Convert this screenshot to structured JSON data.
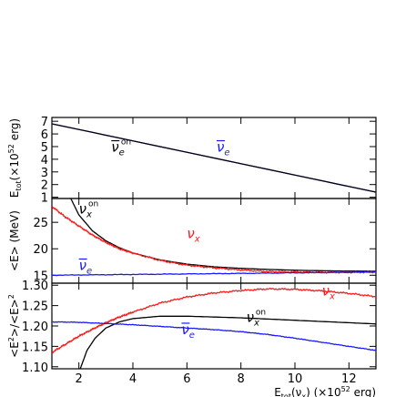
{
  "chart_data": {
    "type": "line",
    "x_axis": {
      "label_main": "E",
      "label_sub": "tot",
      "label_paren": "(ν",
      "label_paren_sub": "x",
      "label_tail": ") (×10",
      "label_exp": "52",
      "label_unit": " erg)",
      "range": [
        1,
        13
      ],
      "ticks": [
        2,
        4,
        6,
        8,
        10,
        12
      ],
      "tick_labels": [
        "2",
        "4",
        "6",
        "8",
        "10",
        "12"
      ]
    },
    "panels": [
      {
        "id": "Etot",
        "ylabel": "E_tot (×10^52 erg)",
        "ylabel_parts": {
          "main": "E",
          "sub": "tot",
          "rest": "(×10",
          "exp": "52",
          "tail": " erg)"
        },
        "ylim": [
          0.9,
          7.3
        ],
        "yticks": [
          1,
          2,
          3,
          4,
          5,
          6,
          7
        ],
        "ytick_labels": [
          "1",
          "2",
          "3",
          "4",
          "5",
          "6",
          "7"
        ],
        "series": [
          {
            "kind": "nue_model",
            "color": "#1a1aff",
            "x": [
              1,
              13
            ],
            "y": [
              6.8,
              1.4
            ]
          },
          {
            "kind": "nue_on",
            "color": "#000000",
            "x": [
              1,
              13
            ],
            "y": [
              6.8,
              1.4
            ]
          }
        ],
        "annotations": [
          {
            "base": "ν",
            "bar": true,
            "sub": "e",
            "sup": "on",
            "color": "#000000",
            "x": 3.2,
            "y": 4.6
          },
          {
            "base": "ν",
            "bar": true,
            "sub": "e",
            "sup": "",
            "color": "#1a1aff",
            "x": 7.1,
            "y": 4.6
          }
        ]
      },
      {
        "id": "meanE",
        "ylabel": "<E> (MeV)",
        "ylim": [
          13.5,
          29.5
        ],
        "yticks": [
          15,
          20,
          25
        ],
        "ytick_labels": [
          "15",
          "20",
          "25"
        ],
        "series": [
          {
            "kind": "nux_on",
            "color": "#000000",
            "x": [
              1.7,
              2,
              2.5,
              3,
              3.5,
              4,
              5,
              6,
              7,
              8,
              9,
              10,
              11,
              12,
              13
            ],
            "y": [
              29.5,
              26.4,
              23.4,
              21.5,
              20.2,
              19.2,
              17.9,
              17.1,
              16.6,
              16.3,
              16.1,
              15.95,
              15.85,
              15.8,
              15.75
            ]
          },
          {
            "kind": "nux",
            "color": "#ff1a1a",
            "x": [
              1,
              1.5,
              2,
              2.5,
              3,
              3.5,
              4,
              5,
              6,
              7,
              8,
              9,
              10,
              11,
              12,
              13
            ],
            "y": [
              28.0,
              26.0,
              24.3,
              22.6,
              21.2,
              20.0,
              19.2,
              17.8,
              16.9,
              16.4,
              16.0,
              15.7,
              15.6,
              15.55,
              15.55,
              15.6
            ]
          },
          {
            "kind": "nue",
            "color": "#1a1aff",
            "x": [
              1,
              3,
              5,
              7,
              9,
              11,
              13
            ],
            "y": [
              15.0,
              15.1,
              15.2,
              15.3,
              15.4,
              15.5,
              15.6
            ]
          }
        ],
        "annotations": [
          {
            "base": "ν",
            "bar": false,
            "sub": "x",
            "sup": "on",
            "color": "#000000",
            "x": 2.0,
            "y": 26.7
          },
          {
            "base": "ν",
            "bar": false,
            "sub": "x",
            "sup": "",
            "color": "#ff1a1a",
            "x": 6.0,
            "y": 22.0
          },
          {
            "base": "ν",
            "bar": true,
            "sub": "e",
            "sup": "",
            "color": "#1a1aff",
            "x": 2.0,
            "y": 16.0
          }
        ]
      },
      {
        "id": "ratio",
        "ylabel": "<E²>/<E>²",
        "ylabel_parts": {
          "a": "<E",
          "a_exp": "2",
          "b": ">/<E>",
          "b_exp": "2"
        },
        "ylim": [
          1.095,
          1.305
        ],
        "yticks": [
          1.1,
          1.15,
          1.2,
          1.25,
          1.3
        ],
        "ytick_labels": [
          "1.10",
          "1.15",
          "1.20",
          "1.25",
          "1.30"
        ],
        "series": [
          {
            "kind": "nux_on",
            "color": "#000000",
            "x": [
              2.05,
              2.3,
              2.6,
              3,
              3.5,
              4,
              5,
              6,
              7,
              8,
              9,
              10,
              11,
              12,
              13
            ],
            "y": [
              1.095,
              1.14,
              1.17,
              1.195,
              1.21,
              1.218,
              1.224,
              1.224,
              1.222,
              1.22,
              1.217,
              1.214,
              1.211,
              1.208,
              1.205
            ]
          },
          {
            "kind": "nux",
            "color": "#ff1a1a",
            "x": [
              1,
              1.5,
              2,
              2.5,
              3,
              3.5,
              4,
              5,
              6,
              7,
              8,
              9,
              10,
              11,
              12,
              13
            ],
            "y": [
              1.135,
              1.155,
              1.175,
              1.192,
              1.208,
              1.222,
              1.234,
              1.256,
              1.271,
              1.281,
              1.287,
              1.291,
              1.29,
              1.286,
              1.28,
              1.272
            ]
          },
          {
            "kind": "nue",
            "color": "#1a1aff",
            "x": [
              1,
              2,
              3,
              4,
              5,
              6,
              7,
              8,
              9,
              10,
              11,
              12,
              13
            ],
            "y": [
              1.21,
              1.209,
              1.206,
              1.203,
              1.199,
              1.195,
              1.191,
              1.186,
              1.179,
              1.17,
              1.16,
              1.15,
              1.14
            ]
          }
        ],
        "annotations": [
          {
            "base": "ν",
            "bar": false,
            "sub": "x",
            "sup": "",
            "color": "#ff1a1a",
            "x": 11.0,
            "y": 1.275
          },
          {
            "base": "ν",
            "bar": false,
            "sub": "x",
            "sup": "on",
            "color": "#000000",
            "x": 8.2,
            "y": 1.21
          },
          {
            "base": "ν",
            "bar": true,
            "sub": "e",
            "sup": "",
            "color": "#1a1aff",
            "x": 5.8,
            "y": 1.18
          }
        ]
      }
    ]
  }
}
